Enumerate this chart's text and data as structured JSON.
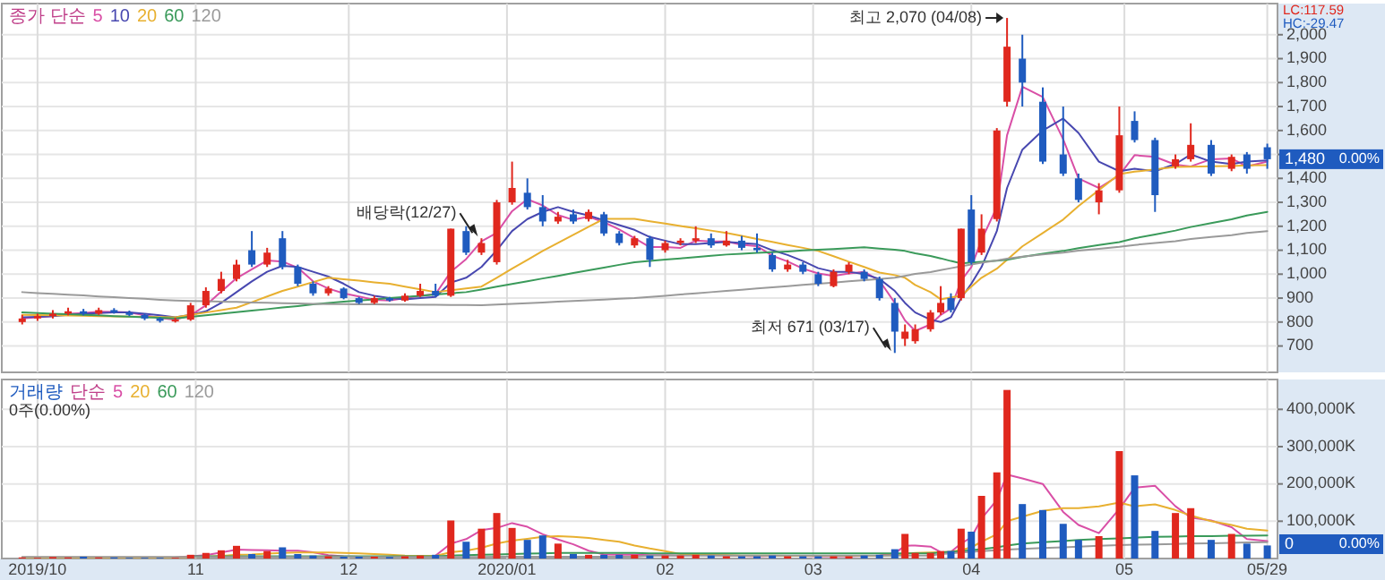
{
  "chart_data": [
    {
      "type": "candlestick",
      "legend": "top left",
      "legend_title": "종가 단순",
      "grid": true,
      "tick_labels": "y",
      "xlim": [
        "2019-09-24",
        "2020-05-31"
      ],
      "xticks": [
        {
          "value": "2019-10-01",
          "label": null
        },
        {
          "value": "2019-11-01",
          "label": null
        },
        {
          "value": "2019-12-01",
          "label": null
        },
        {
          "value": "2020-01-01",
          "label": null
        },
        {
          "value": "2020-02-01",
          "label": null
        },
        {
          "value": "2020-03-01",
          "label": null
        },
        {
          "value": "2020-04-01",
          "label": null
        },
        {
          "value": "2020-05-01",
          "label": null
        },
        {
          "value": "2020-05-29",
          "label": null
        }
      ],
      "ylim": [
        590,
        2130
      ],
      "yticks": [
        700,
        800,
        900,
        {
          "value": 1000,
          "label": "1,000"
        },
        {
          "value": 1100,
          "label": "1,100"
        },
        {
          "value": 1200,
          "label": "1,200"
        },
        {
          "value": 1300,
          "label": "1,300"
        },
        {
          "value": 1400,
          "label": "1,400"
        },
        {
          "value": 1500,
          "label": null
        },
        {
          "value": 1600,
          "label": "1,600"
        },
        {
          "value": 1700,
          "label": "1,700"
        },
        {
          "value": 1800,
          "label": "1,800"
        },
        {
          "value": 1900,
          "label": "1,900"
        },
        {
          "value": 2000,
          "label": "2,000"
        }
      ],
      "x": [
        "2019-09-28",
        "2019-10-01",
        "2019-10-04",
        "2019-10-07",
        "2019-10-10",
        "2019-10-13",
        "2019-10-16",
        "2019-10-19",
        "2019-10-22",
        "2019-10-25",
        "2019-10-28",
        "2019-10-31",
        "2019-11-03",
        "2019-11-06",
        "2019-11-09",
        "2019-11-12",
        "2019-11-15",
        "2019-11-18",
        "2019-11-21",
        "2019-11-24",
        "2019-11-27",
        "2019-11-30",
        "2019-12-03",
        "2019-12-06",
        "2019-12-09",
        "2019-12-12",
        "2019-12-15",
        "2019-12-18",
        "2019-12-21",
        "2019-12-24",
        "2019-12-27",
        "2019-12-30",
        "2020-01-02",
        "2020-01-05",
        "2020-01-08",
        "2020-01-11",
        "2020-01-14",
        "2020-01-17",
        "2020-01-20",
        "2020-01-23",
        "2020-01-26",
        "2020-01-29",
        "2020-02-01",
        "2020-02-04",
        "2020-02-07",
        "2020-02-10",
        "2020-02-13",
        "2020-02-16",
        "2020-02-19",
        "2020-02-22",
        "2020-02-25",
        "2020-02-28",
        "2020-03-02",
        "2020-03-05",
        "2020-03-08",
        "2020-03-11",
        "2020-03-14",
        "2020-03-17",
        "2020-03-19",
        "2020-03-21",
        "2020-03-24",
        "2020-03-26",
        "2020-03-28",
        "2020-03-30",
        "2020-04-01",
        "2020-04-03",
        "2020-04-06",
        "2020-04-08",
        "2020-04-11",
        "2020-04-15",
        "2020-04-19",
        "2020-04-22",
        "2020-04-26",
        "2020-04-30",
        "2020-05-03",
        "2020-05-07",
        "2020-05-11",
        "2020-05-14",
        "2020-05-18",
        "2020-05-22",
        "2020-05-25",
        "2020-05-29"
      ],
      "ohlc": [
        [
          800,
          830,
          790,
          815
        ],
        [
          815,
          835,
          805,
          825
        ],
        [
          825,
          850,
          815,
          835
        ],
        [
          835,
          860,
          828,
          845
        ],
        [
          845,
          855,
          828,
          835
        ],
        [
          835,
          860,
          830,
          850
        ],
        [
          850,
          858,
          835,
          840
        ],
        [
          840,
          848,
          825,
          830
        ],
        [
          830,
          835,
          808,
          815
        ],
        [
          815,
          820,
          798,
          805
        ],
        [
          805,
          818,
          798,
          810
        ],
        [
          810,
          880,
          805,
          870
        ],
        [
          870,
          945,
          860,
          930
        ],
        [
          930,
          1010,
          920,
          980
        ],
        [
          980,
          1060,
          970,
          1040
        ],
        [
          1100,
          1180,
          1030,
          1040
        ],
        [
          1040,
          1110,
          1030,
          1090
        ],
        [
          1150,
          1180,
          1020,
          1030
        ],
        [
          1030,
          1040,
          950,
          960
        ],
        [
          960,
          970,
          910,
          920
        ],
        [
          920,
          950,
          910,
          940
        ],
        [
          940,
          945,
          895,
          900
        ],
        [
          900,
          905,
          875,
          880
        ],
        [
          880,
          910,
          875,
          900
        ],
        [
          900,
          905,
          885,
          890
        ],
        [
          890,
          920,
          885,
          910
        ],
        [
          910,
          960,
          905,
          930
        ],
        [
          930,
          960,
          905,
          910
        ],
        [
          910,
          1190,
          905,
          1190
        ],
        [
          1180,
          1200,
          1080,
          1090
        ],
        [
          1090,
          1150,
          1080,
          1130
        ],
        [
          1050,
          1310,
          1040,
          1300
        ],
        [
          1300,
          1470,
          1290,
          1360
        ],
        [
          1340,
          1400,
          1270,
          1280
        ],
        [
          1280,
          1330,
          1200,
          1220
        ],
        [
          1220,
          1260,
          1210,
          1240
        ],
        [
          1250,
          1270,
          1210,
          1220
        ],
        [
          1230,
          1270,
          1220,
          1260
        ],
        [
          1250,
          1260,
          1160,
          1170
        ],
        [
          1170,
          1180,
          1120,
          1130
        ],
        [
          1120,
          1160,
          1110,
          1150
        ],
        [
          1150,
          1160,
          1030,
          1060
        ],
        [
          1100,
          1140,
          1090,
          1130
        ],
        [
          1130,
          1150,
          1120,
          1140
        ],
        [
          1140,
          1200,
          1130,
          1150
        ],
        [
          1150,
          1170,
          1110,
          1120
        ],
        [
          1120,
          1180,
          1115,
          1140
        ],
        [
          1140,
          1160,
          1100,
          1110
        ],
        [
          1110,
          1170,
          1090,
          1100
        ],
        [
          1080,
          1090,
          1010,
          1020
        ],
        [
          1020,
          1060,
          1010,
          1040
        ],
        [
          1040,
          1050,
          1000,
          1010
        ],
        [
          1000,
          1010,
          950,
          960
        ],
        [
          950,
          1020,
          945,
          1010
        ],
        [
          1010,
          1050,
          1000,
          1040
        ],
        [
          1010,
          1020,
          970,
          980
        ],
        [
          980,
          990,
          890,
          900
        ],
        [
          880,
          900,
          671,
          760
        ],
        [
          730,
          790,
          700,
          760
        ],
        [
          720,
          790,
          710,
          770
        ],
        [
          770,
          850,
          760,
          840
        ],
        [
          840,
          950,
          830,
          880
        ],
        [
          900,
          920,
          840,
          850
        ],
        [
          900,
          1190,
          890,
          1190
        ],
        [
          1270,
          1330,
          1040,
          1050
        ],
        [
          1090,
          1250,
          1080,
          1190
        ],
        [
          1230,
          1610,
          1220,
          1600
        ],
        [
          1720,
          2070,
          1700,
          1950
        ],
        [
          1900,
          2000,
          1700,
          1800
        ],
        [
          1720,
          1780,
          1460,
          1470
        ],
        [
          1500,
          1700,
          1410,
          1420
        ],
        [
          1400,
          1420,
          1300,
          1310
        ],
        [
          1300,
          1380,
          1250,
          1350
        ],
        [
          1350,
          1700,
          1340,
          1580
        ],
        [
          1640,
          1680,
          1550,
          1560
        ],
        [
          1560,
          1570,
          1260,
          1330
        ],
        [
          1450,
          1500,
          1440,
          1480
        ],
        [
          1480,
          1630,
          1470,
          1540
        ],
        [
          1540,
          1560,
          1410,
          1420
        ],
        [
          1440,
          1500,
          1430,
          1490
        ],
        [
          1500,
          1510,
          1420,
          1440
        ],
        [
          1530,
          1545,
          1440,
          1480
        ]
      ],
      "series": [
        {
          "name": "5",
          "type": "line",
          "color": "#d94fa6",
          "values": [
            815,
            820,
            825,
            835,
            838,
            843,
            842,
            840,
            828,
            817,
            810,
            828,
            870,
            927,
            983,
            1020,
            1057,
            1053,
            1027,
            970,
            940,
            920,
            907,
            893,
            890,
            900,
            910,
            917,
            1010,
            1063,
            1137,
            1173,
            1263,
            1313,
            1287,
            1247,
            1227,
            1240,
            1217,
            1187,
            1150,
            1113,
            1113,
            1110,
            1140,
            1137,
            1137,
            1123,
            1117,
            1077,
            1053,
            1023,
            1003,
            993,
            1003,
            1010,
            973,
            880,
            807,
            763,
            790,
            830,
            857,
            973,
            1030,
            1143,
            1280,
            1580,
            1783,
            1740,
            1563,
            1400,
            1360,
            1413,
            1497,
            1490,
            1457,
            1450,
            1480,
            1483,
            1450,
            1470
          ]
        },
        {
          "name": "10",
          "type": "line",
          "color": "#4848b0",
          "values": [
            820,
            822,
            825,
            830,
            835,
            838,
            840,
            840,
            835,
            828,
            820,
            830,
            845,
            880,
            925,
            970,
            1010,
            1035,
            1030,
            1010,
            990,
            960,
            925,
            910,
            900,
            895,
            900,
            905,
            965,
            985,
            1030,
            1100,
            1180,
            1230,
            1260,
            1280,
            1260,
            1245,
            1225,
            1205,
            1185,
            1155,
            1140,
            1125,
            1125,
            1130,
            1135,
            1130,
            1125,
            1100,
            1080,
            1055,
            1025,
            1010,
            1010,
            1000,
            980,
            930,
            880,
            840,
            810,
            800,
            820,
            900,
            960,
            1030,
            1180,
            1360,
            1520,
            1600,
            1650,
            1590,
            1470,
            1430,
            1440,
            1430,
            1460,
            1500,
            1470,
            1460,
            1470,
            1475
          ]
        },
        {
          "name": "20",
          "type": "line",
          "color": "#e8b030",
          "values": [
            830,
            829,
            828,
            827,
            826,
            825,
            824,
            823,
            822,
            821,
            820,
            830,
            840,
            850,
            860,
            883,
            907,
            930,
            948,
            967,
            985,
            979,
            973,
            966,
            960,
            948,
            937,
            925,
            933,
            940,
            948,
            985,
            1023,
            1060,
            1097,
            1131,
            1164,
            1198,
            1231,
            1231,
            1231,
            1221,
            1211,
            1201,
            1192,
            1182,
            1172,
            1160,
            1147,
            1135,
            1122,
            1110,
            1097,
            1075,
            1052,
            1030,
            1007,
            996,
            985,
            955,
            925,
            895,
            903,
            910,
            948,
            985,
            1023,
            1060,
            1116,
            1172,
            1228,
            1284,
            1351,
            1418,
            1428,
            1438,
            1448,
            1449,
            1451,
            1452,
            1454,
            1455
          ]
        },
        {
          "name": "60",
          "type": "line",
          "color": "#3a9a5a",
          "values": [
            840,
            838,
            835,
            833,
            830,
            828,
            825,
            823,
            820,
            818,
            815,
            822,
            828,
            835,
            841,
            848,
            854,
            861,
            867,
            874,
            880,
            885,
            890,
            895,
            900,
            905,
            910,
            915,
            920,
            925,
            936,
            948,
            959,
            970,
            982,
            993,
            1005,
            1016,
            1027,
            1039,
            1050,
            1055,
            1061,
            1066,
            1071,
            1077,
            1082,
            1085,
            1089,
            1092,
            1095,
            1099,
            1102,
            1105,
            1109,
            1112,
            1107,
            1102,
            1097,
            1087,
            1076,
            1066,
            1055,
            1045,
            1049,
            1052,
            1056,
            1060,
            1072,
            1085,
            1097,
            1109,
            1122,
            1134,
            1150,
            1166,
            1182,
            1197,
            1213,
            1229,
            1245,
            1260
          ]
        },
        {
          "name": "120",
          "type": "line",
          "color": "#9a9a9a",
          "values": [
            925,
            921,
            918,
            914,
            911,
            907,
            904,
            900,
            897,
            893,
            890,
            888,
            887,
            885,
            884,
            882,
            881,
            879,
            878,
            876,
            875,
            875,
            874,
            874,
            873,
            873,
            872,
            872,
            871,
            871,
            870,
            873,
            876,
            879,
            882,
            885,
            888,
            891,
            894,
            897,
            900,
            905,
            910,
            915,
            920,
            925,
            930,
            935,
            940,
            945,
            950,
            955,
            960,
            965,
            970,
            975,
            980,
            985,
            993,
            1001,
            1009,
            1017,
            1025,
            1033,
            1040,
            1048,
            1057,
            1065,
            1073,
            1082,
            1090,
            1098,
            1106,
            1114,
            1122,
            1130,
            1138,
            1147,
            1155,
            1163,
            1172,
            1180
          ]
        }
      ],
      "annotations": [
        "LC:117.59",
        "HC:-29.47",
        {
          "text": "최고 2,070 (04/08)",
          "x": "2020-04-08",
          "y": 2070
        },
        {
          "text": "최저 671 (03/17)",
          "x": "2020-03-17",
          "y": 671
        },
        {
          "text": "배당락(12/27)",
          "x": "2019-12-27",
          "y": 1150
        },
        "1,480",
        "0.00%"
      ]
    },
    {
      "type": "bar",
      "legend": "top left",
      "legend_title": "단순",
      "grid": true,
      "xlim": [
        "2019-09-24",
        "2020-05-31"
      ],
      "xticks": [
        {
          "value": "2019-10-01",
          "label": "2019/10"
        },
        {
          "value": "2019-11-01",
          "label": "11"
        },
        {
          "value": "2019-12-01",
          "label": "12"
        },
        {
          "value": "2020-01-01",
          "label": "2020/01"
        },
        {
          "value": "2020-02-01",
          "label": "02"
        },
        {
          "value": "2020-03-01",
          "label": "03"
        },
        {
          "value": "2020-04-01",
          "label": "04"
        },
        {
          "value": "2020-05-01",
          "label": "05"
        },
        {
          "value": "2020-05-29",
          "label": "05/29"
        }
      ],
      "ylim": [
        0,
        480000
      ],
      "yticks": [
        {
          "value": 100000,
          "label": "100,000K"
        },
        {
          "value": 200000,
          "label": "200,000K"
        },
        {
          "value": 300000,
          "label": "300,000K"
        },
        {
          "value": 400000,
          "label": "400,000K"
        }
      ],
      "x": [
        "2019-09-28",
        "2019-10-01",
        "2019-10-04",
        "2019-10-07",
        "2019-10-10",
        "2019-10-13",
        "2019-10-16",
        "2019-10-19",
        "2019-10-22",
        "2019-10-25",
        "2019-10-28",
        "2019-10-31",
        "2019-11-03",
        "2019-11-06",
        "2019-11-09",
        "2019-11-12",
        "2019-11-15",
        "2019-11-18",
        "2019-11-21",
        "2019-11-24",
        "2019-11-27",
        "2019-11-30",
        "2019-12-03",
        "2019-12-06",
        "2019-12-09",
        "2019-12-12",
        "2019-12-15",
        "2019-12-18",
        "2019-12-21",
        "2019-12-24",
        "2019-12-27",
        "2019-12-30",
        "2020-01-02",
        "2020-01-05",
        "2020-01-08",
        "2020-01-11",
        "2020-01-14",
        "2020-01-17",
        "2020-01-20",
        "2020-01-23",
        "2020-01-26",
        "2020-01-29",
        "2020-02-01",
        "2020-02-04",
        "2020-02-07",
        "2020-02-10",
        "2020-02-13",
        "2020-02-16",
        "2020-02-19",
        "2020-02-22",
        "2020-02-25",
        "2020-02-28",
        "2020-03-02",
        "2020-03-05",
        "2020-03-08",
        "2020-03-11",
        "2020-03-14",
        "2020-03-17",
        "2020-03-19",
        "2020-03-21",
        "2020-03-24",
        "2020-03-26",
        "2020-03-28",
        "2020-03-30",
        "2020-04-01",
        "2020-04-03",
        "2020-04-06",
        "2020-04-08",
        "2020-04-11",
        "2020-04-15",
        "2020-04-19",
        "2020-04-22",
        "2020-04-26",
        "2020-04-30",
        "2020-05-03",
        "2020-05-07",
        "2020-05-11",
        "2020-05-14",
        "2020-05-18",
        "2020-05-22",
        "2020-05-25",
        "2020-05-29"
      ],
      "series": [
        {
          "name": "거래량",
          "color": "#1f5bbf",
          "values": [
            3000,
            2000,
            4000,
            3000,
            5000,
            3000,
            3000,
            2000,
            2000,
            2000,
            2000,
            10000,
            15000,
            22000,
            34000,
            12000,
            20000,
            30000,
            12000,
            8000,
            6000,
            5000,
            5000,
            5000,
            4000,
            6000,
            8000,
            10000,
            102000,
            45000,
            80000,
            122000,
            82000,
            50000,
            62000,
            40000,
            12000,
            10000,
            10000,
            10000,
            10000,
            8000,
            8000,
            8000,
            10000,
            8000,
            6000,
            6000,
            6000,
            8000,
            6000,
            6000,
            6000,
            6000,
            6000,
            8000,
            10000,
            25000,
            66000,
            15000,
            15000,
            20000,
            20000,
            80000,
            72000,
            168000,
            231000,
            452000,
            146000,
            130000,
            93000,
            50000,
            60000,
            288000,
            223000,
            74000,
            122000,
            135000,
            50000,
            66000,
            40000,
            35000
          ],
          "colors": [
            "#e0281e",
            "#e0281e",
            "#e0281e",
            "#e0281e",
            "#1f5bbf",
            "#e0281e",
            "#1f5bbf",
            "#1f5bbf",
            "#1f5bbf",
            "#1f5bbf",
            "#e0281e",
            "#e0281e",
            "#e0281e",
            "#e0281e",
            "#e0281e",
            "#1f5bbf",
            "#e0281e",
            "#1f5bbf",
            "#1f5bbf",
            "#1f5bbf",
            "#e0281e",
            "#1f5bbf",
            "#1f5bbf",
            "#e0281e",
            "#1f5bbf",
            "#e0281e",
            "#e0281e",
            "#1f5bbf",
            "#e0281e",
            "#1f5bbf",
            "#e0281e",
            "#e0281e",
            "#e0281e",
            "#1f5bbf",
            "#1f5bbf",
            "#e0281e",
            "#1f5bbf",
            "#e0281e",
            "#1f5bbf",
            "#1f5bbf",
            "#e0281e",
            "#1f5bbf",
            "#e0281e",
            "#e0281e",
            "#e0281e",
            "#1f5bbf",
            "#e0281e",
            "#1f5bbf",
            "#1f5bbf",
            "#1f5bbf",
            "#e0281e",
            "#1f5bbf",
            "#1f5bbf",
            "#e0281e",
            "#e0281e",
            "#1f5bbf",
            "#1f5bbf",
            "#1f5bbf",
            "#e0281e",
            "#e0281e",
            "#e0281e",
            "#e0281e",
            "#1f5bbf",
            "#e0281e",
            "#1f5bbf",
            "#e0281e",
            "#e0281e",
            "#e0281e",
            "#1f5bbf",
            "#1f5bbf",
            "#1f5bbf",
            "#1f5bbf",
            "#e0281e",
            "#e0281e",
            "#1f5bbf",
            "#1f5bbf",
            "#e0281e",
            "#e0281e",
            "#1f5bbf",
            "#e0281e",
            "#1f5bbf",
            "#1f5bbf"
          ]
        },
        {
          "name": "5",
          "type": "line",
          "color": "#d94fa6",
          "values": [
            null,
            null,
            null,
            null,
            null,
            null,
            null,
            null,
            null,
            null,
            3000,
            6000,
            9000,
            16000,
            24000,
            23000,
            22000,
            21000,
            21000,
            17000,
            9000,
            6000,
            5000,
            5000,
            5000,
            5000,
            6000,
            8000,
            40000,
            52000,
            76000,
            82000,
            95000,
            85000,
            65000,
            51000,
            38000,
            21000,
            11000,
            10000,
            10000,
            9000,
            9000,
            8000,
            9000,
            9000,
            8000,
            7000,
            6000,
            7000,
            7000,
            7000,
            6000,
            6000,
            6000,
            7000,
            8000,
            14000,
            34000,
            35000,
            32000,
            17000,
            18000,
            40000,
            57000,
            107000,
            157000,
            225000,
            215000,
            200000,
            125000,
            90000,
            68000,
            133000,
            190000,
            195000,
            140000,
            110000,
            102000,
            84000,
            52000,
            47000
          ]
        },
        {
          "name": "20",
          "type": "line",
          "color": "#e8b030",
          "values": [
            3000,
            3000,
            3000,
            3000,
            3000,
            3000,
            3000,
            3000,
            3000,
            3000,
            3000,
            4000,
            5000,
            7000,
            10000,
            11000,
            13000,
            15000,
            16000,
            16000,
            16000,
            15000,
            14000,
            12000,
            10000,
            8000,
            7000,
            7000,
            17000,
            21000,
            29000,
            40000,
            48000,
            53000,
            58000,
            60000,
            58000,
            55000,
            50000,
            45000,
            35000,
            27000,
            20000,
            12000,
            10000,
            9000,
            9000,
            8000,
            8000,
            8000,
            7000,
            7000,
            7000,
            7000,
            7000,
            7000,
            7000,
            9000,
            13000,
            15000,
            16000,
            17000,
            18000,
            23000,
            30000,
            45000,
            65000,
            100000,
            112000,
            128000,
            135000,
            135000,
            140000,
            150000,
            140000,
            145000,
            130000,
            115000,
            100000,
            90000,
            80000,
            75000
          ]
        },
        {
          "name": "60",
          "type": "line",
          "color": "#3a9a5a",
          "values": [
            null,
            null,
            null,
            null,
            null,
            null,
            null,
            null,
            null,
            null,
            null,
            6000,
            6000,
            6000,
            6000,
            6000,
            6000,
            6000,
            6000,
            6000,
            6000,
            6000,
            6000,
            6000,
            6000,
            6000,
            6000,
            6000,
            8000,
            9000,
            10000,
            11000,
            12000,
            13000,
            14000,
            15000,
            15000,
            15000,
            15000,
            15000,
            15000,
            14000,
            14000,
            14000,
            14000,
            14000,
            14000,
            14000,
            14000,
            14000,
            14000,
            14000,
            14000,
            14000,
            14000,
            14000,
            14000,
            14000,
            14000,
            14000,
            14000,
            16000,
            18000,
            20000,
            22000,
            25000,
            30000,
            35000,
            40000,
            44000,
            47000,
            50000,
            52000,
            54000,
            56000,
            58000,
            59000,
            60000,
            60000,
            61000,
            61000,
            62000
          ]
        },
        {
          "name": "120",
          "type": "line",
          "color": "#9a9a9a",
          "values": [
            4000,
            4000,
            4000,
            4000,
            4000,
            4000,
            4000,
            4000,
            4000,
            4000,
            4000,
            4000,
            4000,
            4000,
            4000,
            4000,
            4000,
            4000,
            4000,
            4000,
            4000,
            4000,
            4000,
            4000,
            4000,
            4000,
            4000,
            4000,
            4000,
            4000,
            4000,
            5000,
            5000,
            5000,
            5000,
            5000,
            5000,
            5000,
            5000,
            5000,
            5000,
            8000,
            8000,
            8000,
            8000,
            8000,
            8000,
            8000,
            8000,
            8000,
            8000,
            8000,
            8000,
            8000,
            8000,
            8000,
            8000,
            8000,
            8000,
            8000,
            8000,
            12000,
            14000,
            16000,
            18000,
            20000,
            22000,
            24000,
            26000,
            28000,
            30000,
            32000,
            34000,
            36000,
            37000,
            38000,
            39000,
            40000,
            41000,
            42000,
            43000,
            44000
          ]
        }
      ],
      "annotations": [
        "0주(0.00%)",
        "0",
        "0.00%"
      ]
    }
  ]
}
